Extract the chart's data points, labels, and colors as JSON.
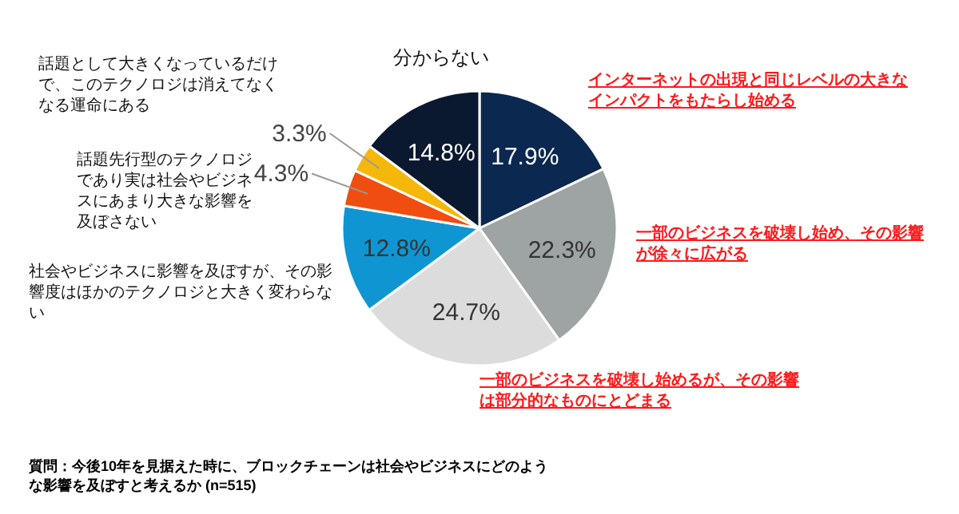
{
  "chart_data": {
    "type": "pie",
    "categories": [
      "インターネットの出現と同じレベルの大きなインパクトをもたらし始める",
      "一部のビジネスを破壊し始め、その影響が徐々に広がる",
      "一部のビジネスを破壊し始めるが、その影響は部分的なものにとどまる",
      "社会やビジネスに影響を及ぼすが、その影響度はほかのテクノロジと大きく変わらない",
      "話題先行型のテクノロジであり実は社会やビジネスにあまり大きな影響を及ぼさない",
      "話題として大きくなっているだけで、このテクノロジは消えてなくなる運命にある",
      "分からない"
    ],
    "values": [
      17.9,
      22.3,
      24.7,
      12.8,
      4.3,
      3.3,
      14.8
    ],
    "colors": [
      "#0b2850",
      "#9ea3a3",
      "#dcdcdc",
      "#0f96d2",
      "#f04e10",
      "#f5b80a",
      "#0a1830"
    ],
    "value_labels": [
      "17.9%",
      "22.3%",
      "24.7%",
      "12.8%",
      "4.3%",
      "3.3%",
      "14.8%"
    ],
    "annotations": [
      "質問：今後10年を見据えた時に、ブロックチェーンは社会やビジネスにどのような影響を及ぼすと考えるか (n=515)"
    ]
  }
}
